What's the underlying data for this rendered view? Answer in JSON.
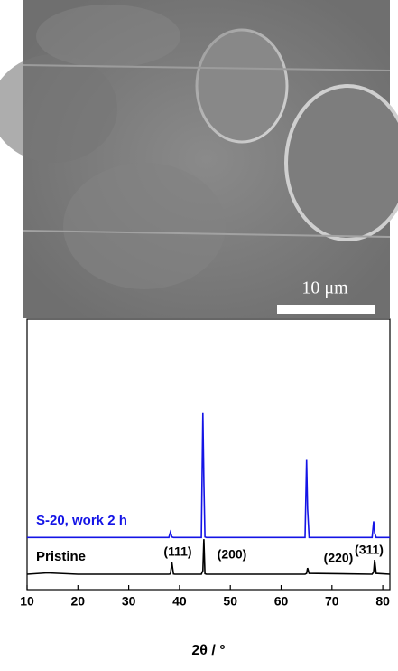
{
  "image": {
    "scale_bar_label": "10 μm"
  },
  "chart_data": {
    "type": "line",
    "xlabel": "2θ / °",
    "x": [
      10,
      14,
      20,
      37.9,
      38.2,
      38.5,
      38.8,
      39.1,
      44.3,
      44.6,
      44.8,
      45.0,
      45.3,
      64.7,
      65.0,
      65.2,
      65.5,
      77.9,
      78.2,
      78.4,
      78.7,
      81.4
    ],
    "series": [
      {
        "name": "S-20, work 2 h",
        "color": "#1414e6",
        "values": [
          19.3,
          19.3,
          19.3,
          19.3,
          21.3,
          19.5,
          19.3,
          19.3,
          19.3,
          65.3,
          40,
          19.5,
          19.3,
          19.3,
          48,
          30,
          19.3,
          19.3,
          25.3,
          21,
          19.3,
          19.3
        ]
      },
      {
        "name": "Pristine",
        "color": "#000000",
        "values": [
          5.7,
          6.2,
          5.7,
          5.7,
          5.8,
          10,
          5.8,
          5.7,
          5.7,
          7,
          18.7,
          5.9,
          5.7,
          5.7,
          6,
          8,
          6,
          5.7,
          6.5,
          11,
          6,
          5.7
        ]
      }
    ],
    "peak_labels": [
      "(111)",
      "(200)",
      "(220)",
      "(311)"
    ],
    "xlim": [
      10,
      81.4
    ],
    "xticks": [
      10,
      20,
      30,
      40,
      50,
      60,
      70,
      80
    ],
    "ylim": [
      0,
      100
    ]
  }
}
